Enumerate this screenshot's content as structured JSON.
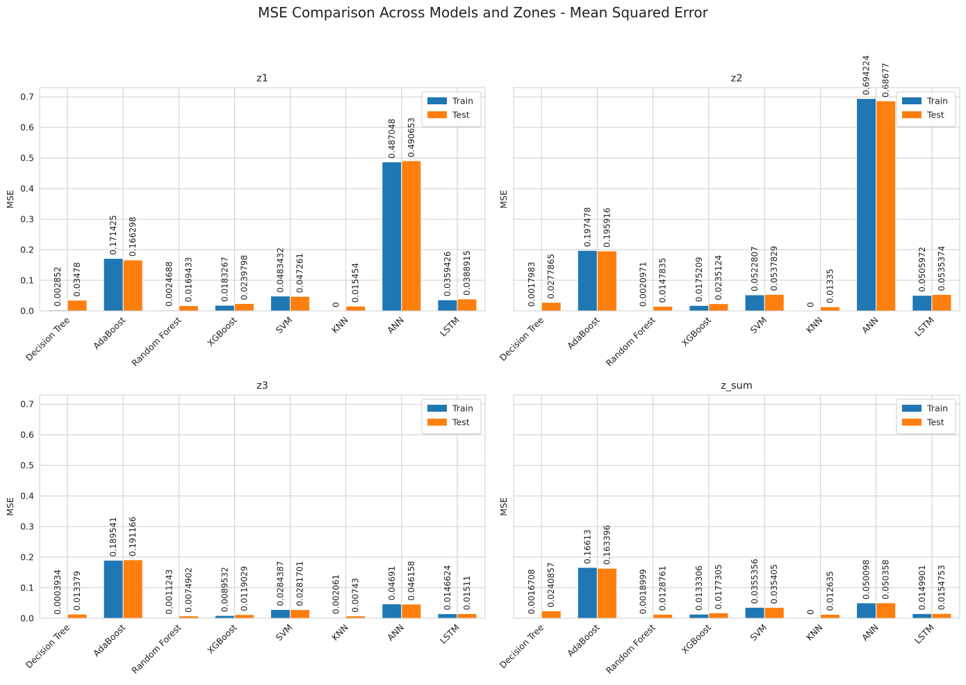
{
  "figure": {
    "title": "MSE Comparison Across Models and Zones - Mean Squared Error"
  },
  "chart_data": [
    {
      "type": "bar",
      "title": "z1",
      "xlabel": "",
      "ylabel": "MSE",
      "ylim": [
        0,
        0.73
      ],
      "yticks": [
        "0.0",
        "0.1",
        "0.2",
        "0.3",
        "0.4",
        "0.5",
        "0.6",
        "0.7"
      ],
      "categories": [
        "Decision Tree",
        "AdaBoost",
        "Random Forest",
        "XGBoost",
        "SVM",
        "KNN",
        "ANN",
        "LSTM"
      ],
      "series": [
        {
          "name": "Train",
          "color": "#1f77b4",
          "values": [
            0.002852,
            0.171425,
            0.0024688,
            0.0183267,
            0.0483432,
            0,
            0.487048,
            0.0359426
          ]
        },
        {
          "name": "Test",
          "color": "#ff7f0e",
          "values": [
            0.03478,
            0.166298,
            0.0169433,
            0.0239798,
            0.047261,
            0.015454,
            0.490653,
            0.0388915
          ]
        }
      ],
      "data_labels": {
        "Train": [
          "0.002852",
          "0.171425",
          "0.0024688",
          "0.0183267",
          "0.0483432",
          "0",
          "0.487048",
          "0.0359426"
        ],
        "Test": [
          "0.03478",
          "0.166298",
          "0.0169433",
          "0.0239798",
          "0.047261",
          "0.015454",
          "0.490653",
          "0.0388915"
        ]
      },
      "grid": true,
      "legend": "top-right"
    },
    {
      "type": "bar",
      "title": "z2",
      "xlabel": "",
      "ylabel": "MSE",
      "ylim": [
        0,
        0.73
      ],
      "yticks": [],
      "categories": [
        "Decision Tree",
        "AdaBoost",
        "Random Forest",
        "XGBoost",
        "SVM",
        "KNN",
        "ANN",
        "LSTM"
      ],
      "series": [
        {
          "name": "Train",
          "color": "#1f77b4",
          "values": [
            0.0017983,
            0.197478,
            0.0020971,
            0.0175209,
            0.0522807,
            0,
            0.694224,
            0.0505972
          ]
        },
        {
          "name": "Test",
          "color": "#ff7f0e",
          "values": [
            0.0277865,
            0.195916,
            0.0147835,
            0.0235124,
            0.0537829,
            0.01335,
            0.68677,
            0.0535374
          ]
        }
      ],
      "data_labels": {
        "Train": [
          "0.0017983",
          "0.197478",
          "0.0020971",
          "0.0175209",
          "0.0522807",
          "0",
          "0.694224",
          "0.0505972"
        ],
        "Test": [
          "0.0277865",
          "0.195916",
          "0.0147835",
          "0.0235124",
          "0.0537829",
          "0.01335",
          "0.68677",
          "0.0535374"
        ]
      },
      "grid": true,
      "legend": "top-right"
    },
    {
      "type": "bar",
      "title": "z3",
      "xlabel": "",
      "ylabel": "MSE",
      "ylim": [
        0,
        0.73
      ],
      "yticks": [
        "0.0",
        "0.1",
        "0.2",
        "0.3",
        "0.4",
        "0.5",
        "0.6",
        "0.7"
      ],
      "categories": [
        "Decision Tree",
        "AdaBoost",
        "Random Forest",
        "XGBoost",
        "SVM",
        "KNN",
        "ANN",
        "LSTM"
      ],
      "series": [
        {
          "name": "Train",
          "color": "#1f77b4",
          "values": [
            0.0003934,
            0.189541,
            0.0011243,
            0.0089532,
            0.0284387,
            0.002061,
            0.04691,
            0.0146624
          ]
        },
        {
          "name": "Test",
          "color": "#ff7f0e",
          "values": [
            0.013379,
            0.191166,
            0.0074902,
            0.0119029,
            0.0281701,
            0.00743,
            0.046158,
            0.01511
          ]
        }
      ],
      "data_labels": {
        "Train": [
          "0.0003934",
          "0.189541",
          "0.0011243",
          "0.0089532",
          "0.0284387",
          "0.002061",
          "0.04691",
          "0.0146624"
        ],
        "Test": [
          "0.013379",
          "0.191166",
          "0.0074902",
          "0.0119029",
          "0.0281701",
          "0.00743",
          "0.046158",
          "0.01511"
        ]
      },
      "grid": true,
      "legend": "top-right"
    },
    {
      "type": "bar",
      "title": "z_sum",
      "xlabel": "",
      "ylabel": "MSE",
      "ylim": [
        0,
        0.73
      ],
      "yticks": [],
      "categories": [
        "Decision Tree",
        "AdaBoost",
        "Random Forest",
        "XGBoost",
        "SVM",
        "KNN",
        "ANN",
        "LSTM"
      ],
      "series": [
        {
          "name": "Train",
          "color": "#1f77b4",
          "values": [
            0.0016708,
            0.16613,
            0.0018999,
            0.0133306,
            0.0355356,
            0,
            0.050098,
            0.0149901
          ]
        },
        {
          "name": "Test",
          "color": "#ff7f0e",
          "values": [
            0.0240857,
            0.163396,
            0.0128761,
            0.0177305,
            0.035405,
            0.012635,
            0.050358,
            0.0154753
          ]
        }
      ],
      "data_labels": {
        "Train": [
          "0.0016708",
          "0.16613",
          "0.0018999",
          "0.0133306",
          "0.0355356",
          "0",
          "0.050098",
          "0.0149901"
        ],
        "Test": [
          "0.0240857",
          "0.163396",
          "0.0128761",
          "0.0177305",
          "0.035405",
          "0.012635",
          "0.050358",
          "0.0154753"
        ]
      },
      "grid": true,
      "legend": "top-right"
    }
  ]
}
